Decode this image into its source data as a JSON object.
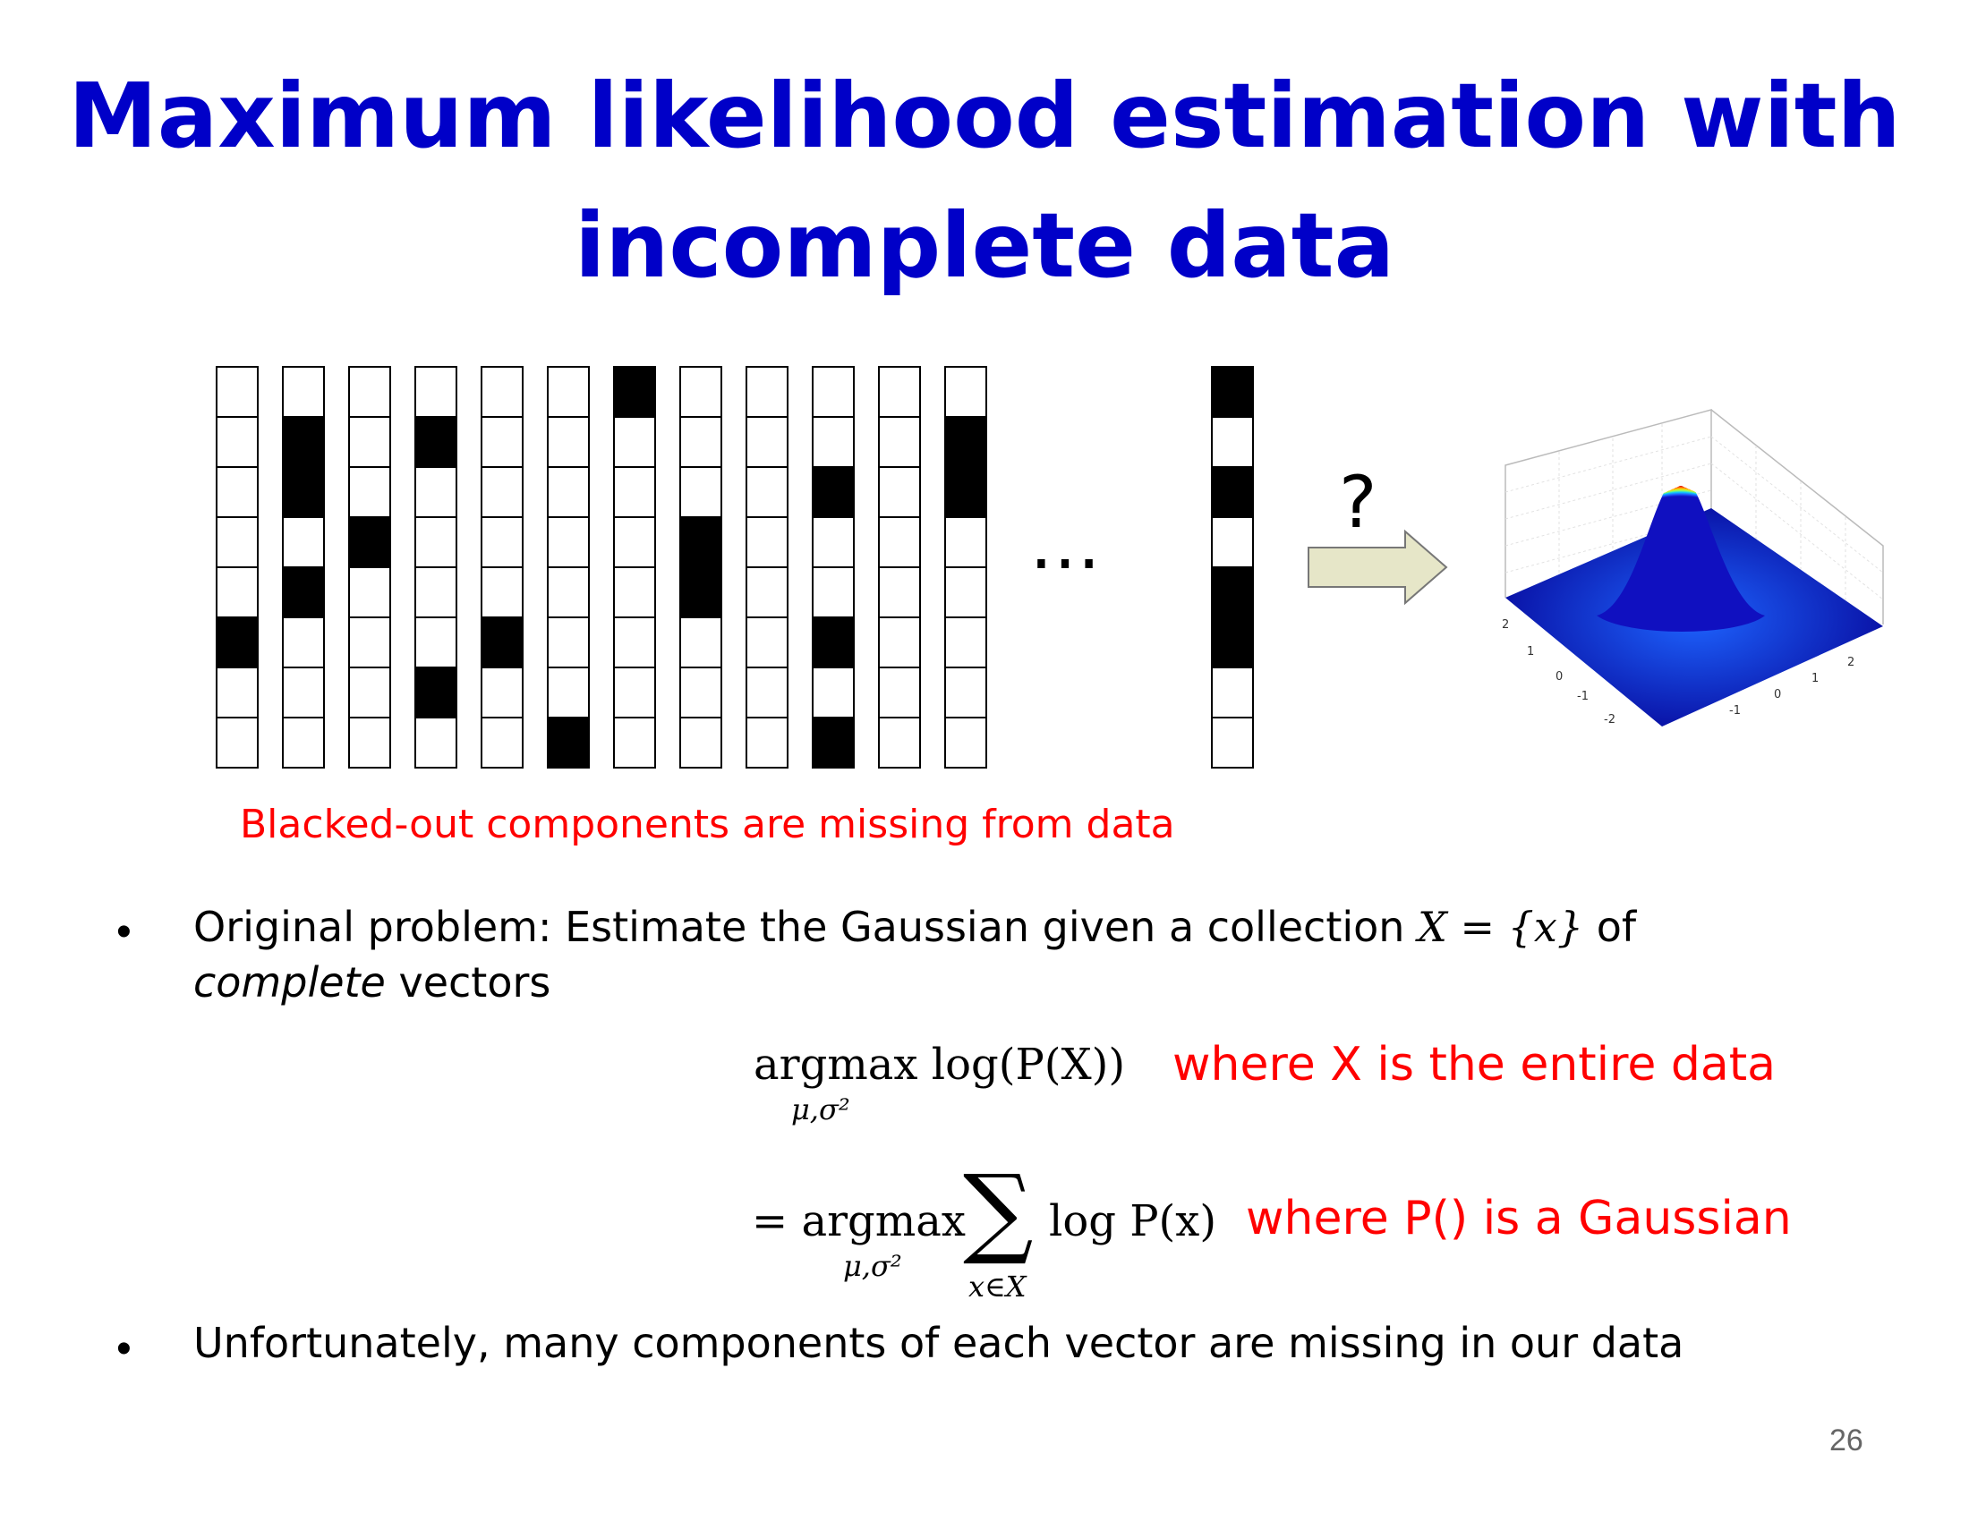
{
  "slide": {
    "title_line1": "Maximum likelihood estimation with",
    "title_line2": "incomplete data",
    "ellipsis": "…",
    "question_mark": "?",
    "caption": "Blacked-out components are missing from data",
    "page_number": "26",
    "colors": {
      "title": "#0000c8",
      "annotation": "#ff0000",
      "missing_cell": "#000000"
    }
  },
  "vectors": {
    "rows_per_vector": 8,
    "missing_pattern": [
      [
        0,
        0,
        0,
        0,
        0,
        1,
        0,
        0
      ],
      [
        0,
        1,
        1,
        0,
        1,
        0,
        0,
        0
      ],
      [
        0,
        0,
        0,
        1,
        0,
        0,
        0,
        0
      ],
      [
        0,
        1,
        0,
        0,
        0,
        0,
        1,
        0
      ],
      [
        0,
        0,
        0,
        0,
        0,
        1,
        0,
        0
      ],
      [
        0,
        0,
        0,
        0,
        0,
        0,
        0,
        1
      ],
      [
        1,
        0,
        0,
        0,
        0,
        0,
        0,
        0
      ],
      [
        0,
        0,
        0,
        1,
        1,
        0,
        0,
        0
      ],
      [
        0,
        0,
        0,
        0,
        0,
        0,
        0,
        0
      ],
      [
        0,
        0,
        1,
        0,
        0,
        1,
        0,
        1
      ],
      [
        0,
        0,
        0,
        0,
        0,
        0,
        0,
        0
      ],
      [
        0,
        1,
        1,
        0,
        0,
        0,
        0,
        0
      ],
      [
        1,
        0,
        1,
        0,
        1,
        1,
        0,
        0
      ]
    ]
  },
  "gaussian_plot": {
    "x_ticks": [
      "-2",
      "-1",
      "0",
      "1",
      "2"
    ],
    "y_ticks": [
      "-2",
      "-1",
      "0",
      "1",
      "2"
    ]
  },
  "bullets": [
    {
      "symbol": "•",
      "prefix": "Original problem:  Estimate the Gaussian given a collection ",
      "math": "X = {x}",
      "middle": " of ",
      "emphasis": "complete",
      "suffix": " vectors"
    },
    {
      "symbol": "•",
      "text": "Unfortunately,  many components of each vector are missing in our data"
    }
  ],
  "equations": {
    "eq1_main": "argmax log(P(X))",
    "eq1_sub": "μ,σ²",
    "eq1_note": "where X is the entire data",
    "eq2_prefix": "= argmax",
    "eq2_sub": "μ,σ²",
    "eq2_sum": "∑",
    "eq2_sum_sub": "x∈X",
    "eq2_body": "log P(x)",
    "eq2_note": "where P() is a Gaussian"
  }
}
